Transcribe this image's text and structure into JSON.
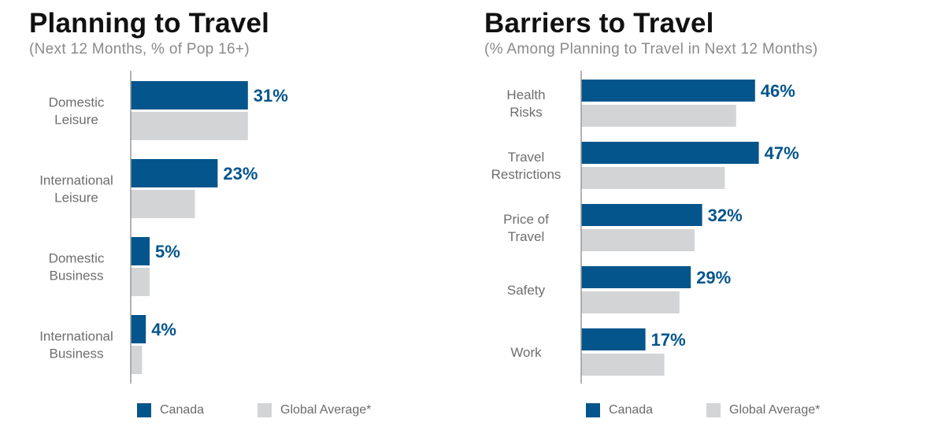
{
  "colors": {
    "canada": "#03558c",
    "global": "#d3d4d6",
    "axis": "#9a9a9a",
    "category_text": "#6e6e6e"
  },
  "legend": {
    "canada": "Canada",
    "global": "Global Average*"
  },
  "chart_data": [
    {
      "type": "bar",
      "orientation": "horizontal",
      "title": "Planning to Travel",
      "subtitle": "(Next 12 Months, % of Pop 16+)",
      "categories": [
        [
          "Domestic",
          "Leisure"
        ],
        [
          "International",
          "Leisure"
        ],
        [
          "Domestic",
          "Business"
        ],
        [
          "International",
          "Business"
        ]
      ],
      "series": [
        {
          "name": "Canada",
          "values": [
            31,
            23,
            5,
            4
          ],
          "labels": [
            "31%",
            "23%",
            "5%",
            "4%"
          ]
        },
        {
          "name": "Global Average*",
          "values": [
            31,
            17,
            5,
            3
          ]
        }
      ],
      "xlim": [
        0,
        100
      ],
      "grid": false,
      "legend_position": "bottom"
    },
    {
      "type": "bar",
      "orientation": "horizontal",
      "title": "Barriers to Travel",
      "subtitle": "(% Among Planning to Travel in Next 12 Months)",
      "categories": [
        [
          "Health",
          "Risks"
        ],
        [
          "Travel",
          "Restrictions"
        ],
        [
          "Price of",
          "Travel"
        ],
        [
          "Safety"
        ],
        [
          "Work"
        ]
      ],
      "series": [
        {
          "name": "Canada",
          "values": [
            46,
            47,
            32,
            29,
            17
          ],
          "labels": [
            "46%",
            "47%",
            "32%",
            "29%",
            "17%"
          ]
        },
        {
          "name": "Global Average*",
          "values": [
            41,
            38,
            30,
            26,
            22
          ]
        }
      ],
      "xlim": [
        0,
        100
      ],
      "grid": false,
      "legend_position": "bottom"
    }
  ]
}
